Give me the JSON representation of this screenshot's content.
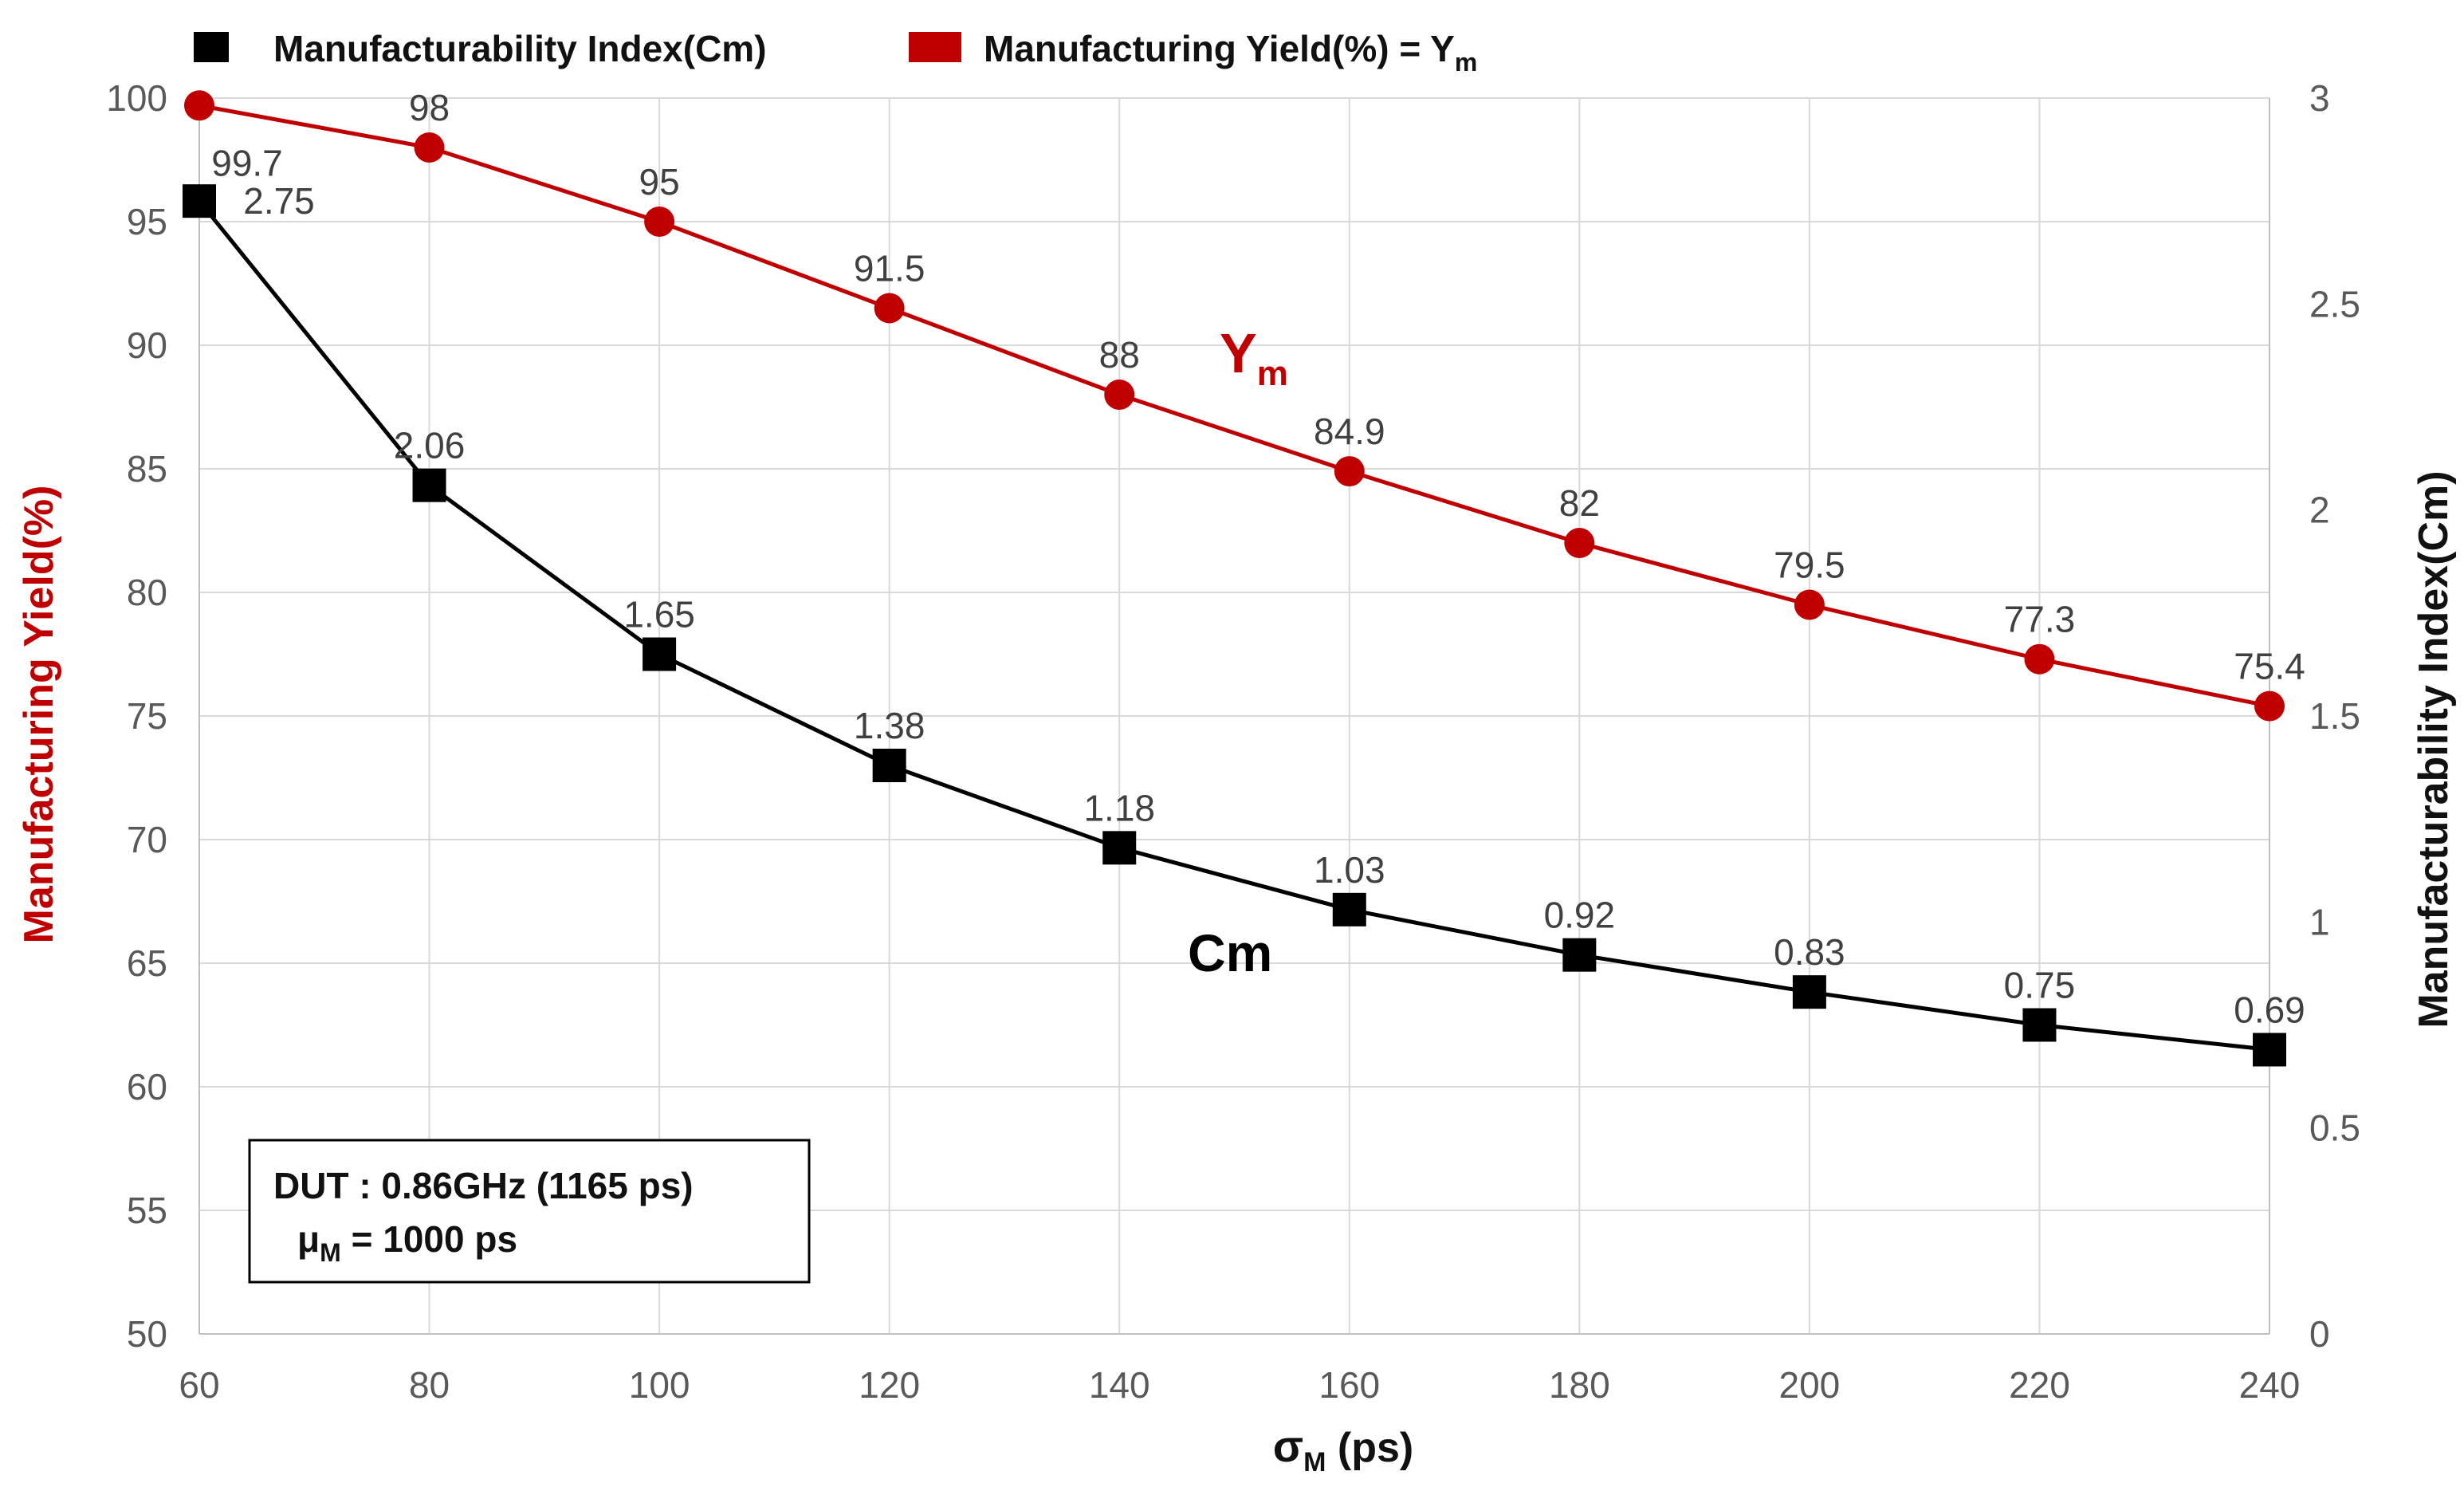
{
  "chart_data": {
    "type": "line",
    "x": [
      60,
      80,
      100,
      120,
      140,
      160,
      180,
      200,
      220,
      240
    ],
    "series": [
      {
        "name": "Manufacturing Yield(%) = Ym",
        "axis": "left",
        "color": "#c00000",
        "marker": "circle",
        "values": [
          99.7,
          98,
          95,
          91.5,
          88,
          84.9,
          82,
          79.5,
          77.3,
          75.4
        ],
        "labels": [
          "99.7",
          "98",
          "95",
          "91.5",
          "88",
          "84.9",
          "82",
          "79.5",
          "77.3",
          "75.4"
        ]
      },
      {
        "name": "Manufacturability Index(Cm)",
        "axis": "right",
        "color": "#000000",
        "marker": "square",
        "values": [
          2.75,
          2.06,
          1.65,
          1.38,
          1.18,
          1.03,
          0.92,
          0.83,
          0.75,
          0.69
        ],
        "labels": [
          "2.75",
          "2.06",
          "1.65",
          "1.38",
          "1.18",
          "1.03",
          "0.92",
          "0.83",
          "0.75",
          "0.69"
        ]
      }
    ],
    "xlim": [
      60,
      240
    ],
    "ylim_left": [
      50,
      100
    ],
    "ylim_right": [
      0,
      3
    ],
    "x_ticks": [
      "60",
      "80",
      "100",
      "120",
      "140",
      "160",
      "180",
      "200",
      "220",
      "240"
    ],
    "y_left_ticks": [
      "50",
      "55",
      "60",
      "65",
      "70",
      "75",
      "80",
      "85",
      "90",
      "95",
      "100"
    ],
    "y_right_ticks": [
      "0",
      "0.5",
      "1",
      "1.5",
      "2",
      "2.5",
      "3"
    ],
    "xlabel": {
      "main": "σ",
      "sub": "M",
      "tail": " (ps)"
    },
    "ylabel_left": "Manufacturing Yield(%)",
    "ylabel_right": "Manufacturability Index(Cm)",
    "legend": {
      "position": "top-left",
      "cm": "Manufacturability Index(Cm)",
      "ym_main": "Manufacturing Yield(%) = Y",
      "ym_sub": "m"
    },
    "annotations": {
      "ym_main": "Y",
      "ym_sub": "m",
      "cm": "Cm",
      "box_line1": "DUT : 0.86GHz (1165 ps)",
      "box_line2_main": "μ",
      "box_line2_sub": "M",
      "box_line2_tail": " = 1000 ps"
    },
    "grid": true,
    "colors": {
      "yield": "#c00000",
      "index": "#000000"
    }
  }
}
